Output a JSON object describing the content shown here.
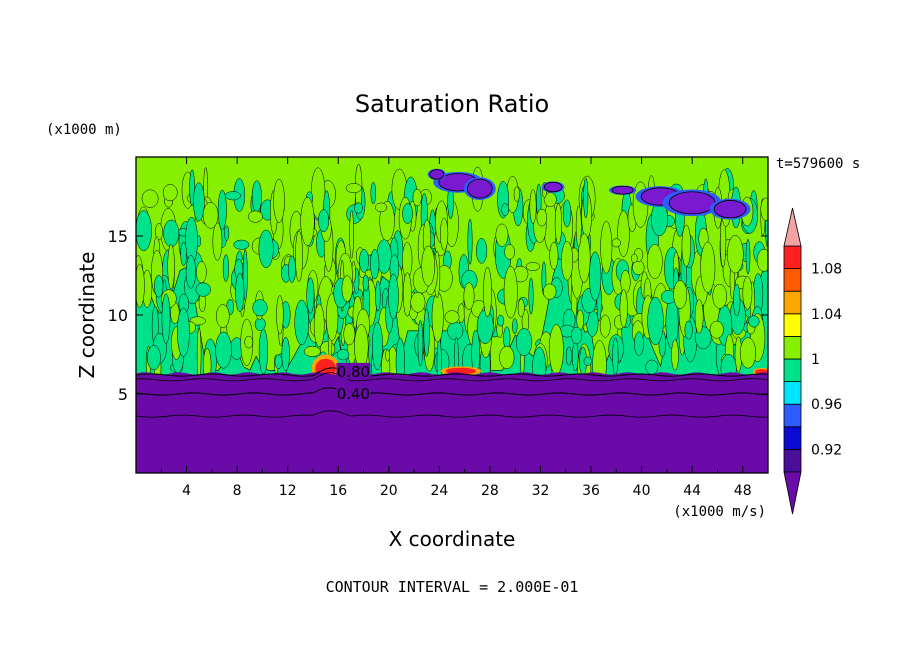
{
  "chart_data": {
    "type": "heatmap",
    "title": "Saturation Ratio",
    "xlabel": "X coordinate",
    "ylabel": "Z coordinate",
    "x_unit_label": "(x1000 m/s)",
    "y_unit_label": "(x1000 m)",
    "time_label": "t=579600 s",
    "footer": "CONTOUR INTERVAL = 2.000E-01",
    "xlim": [
      0,
      50
    ],
    "ylim": [
      0,
      20
    ],
    "x_ticks": [
      "4",
      "8",
      "12",
      "16",
      "20",
      "24",
      "28",
      "32",
      "36",
      "40",
      "44",
      "48"
    ],
    "x_tick_values": [
      4,
      8,
      12,
      16,
      20,
      24,
      28,
      32,
      36,
      40,
      44,
      48
    ],
    "y_ticks": [
      "5",
      "10",
      "15"
    ],
    "y_tick_values": [
      5,
      10,
      15
    ],
    "contour_labels": [
      {
        "text": "0.80",
        "x": 17.2,
        "z": 6.4
      },
      {
        "text": "0.40",
        "x": 17.2,
        "z": 5.0
      }
    ],
    "colorbar": {
      "levels": [
        0.9,
        0.92,
        0.94,
        0.96,
        0.98,
        1.0,
        1.02,
        1.04,
        1.06,
        1.08,
        1.1
      ],
      "colors": [
        "#4b0e9a",
        "#0a0ad4",
        "#2f5cff",
        "#00e4ff",
        "#00e28a",
        "#86f000",
        "#ffff00",
        "#ffa500",
        "#ff5a00",
        "#ff2020",
        "#f4a3a3"
      ],
      "labels": [
        "0.92",
        "0.96",
        "1",
        "1.04",
        "1.08"
      ],
      "label_values": [
        0.92,
        0.96,
        1.0,
        1.04,
        1.08
      ],
      "under_color": "#6a0aa8",
      "over_color": "#f4a3a3"
    },
    "colors": {
      "lower_layer": "#6a0aa8",
      "background_field": "#86f000",
      "near_saturation": "#00e28a",
      "high_patches": "#7a1ad0"
    }
  }
}
